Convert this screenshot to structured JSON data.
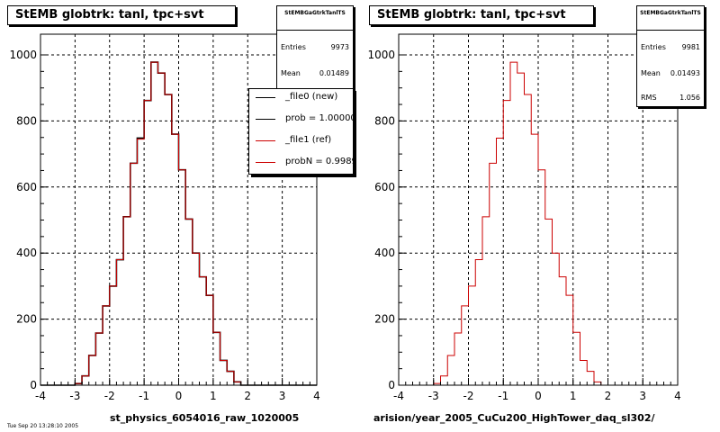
{
  "chart_data": [
    {
      "type": "bar",
      "title": "StEMB globtrk: tanl, tpc+svt",
      "xlabel": "st_physics_6054016_raw_1020005",
      "xlim": [
        -4,
        4
      ],
      "ylim": [
        0,
        1000
      ],
      "xticks": [
        "-4",
        "-3",
        "-2",
        "-1",
        "0",
        "1",
        "2",
        "3",
        "4"
      ],
      "yticks": [
        "0",
        "200",
        "400",
        "600",
        "800",
        "1000"
      ],
      "grid": true,
      "bin_edges_start": -4.0,
      "bin_width": 0.2,
      "series": [
        {
          "name": "_file0 (new)",
          "color": "#000000",
          "values": [
            0,
            0,
            0,
            0,
            0,
            5,
            28,
            90,
            158,
            240,
            300,
            380,
            510,
            672,
            748,
            862,
            978,
            945,
            880,
            760,
            652,
            503,
            400,
            328,
            272,
            160,
            75,
            42,
            10,
            0,
            0,
            0,
            0,
            0,
            0,
            0,
            0,
            0,
            0,
            0
          ]
        },
        {
          "name": "_file1 (ref)",
          "color": "#cc0000",
          "values": [
            0,
            0,
            0,
            0,
            0,
            5,
            28,
            90,
            158,
            240,
            300,
            380,
            510,
            672,
            745,
            862,
            978,
            945,
            880,
            760,
            652,
            503,
            400,
            328,
            272,
            160,
            75,
            42,
            10,
            0,
            0,
            0,
            0,
            0,
            0,
            0,
            0,
            0,
            0,
            0
          ]
        }
      ],
      "stats": {
        "name": "StEMBGaGtrkTanlTS",
        "entries": "9973",
        "mean": "0.01489"
      },
      "legend": {
        "placement": "top-right",
        "entries": [
          {
            "label": "_file0 (new)",
            "color": "#000000"
          },
          {
            "label": "prob = 1.000000",
            "color": "#000000"
          },
          {
            "label": "_file1 (ref)",
            "color": "#cc0000"
          },
          {
            "label": "probN = 0.998961",
            "color": "#cc0000"
          }
        ]
      }
    },
    {
      "type": "bar",
      "title": "StEMB globtrk: tanl, tpc+svt",
      "xlabel": "arision/year_2005_CuCu200_HighTower_daq_sl302/",
      "xlim": [
        -4,
        4
      ],
      "ylim": [
        0,
        1000
      ],
      "xticks": [
        "-4",
        "-3",
        "-2",
        "-1",
        "0",
        "1",
        "2",
        "3",
        "4"
      ],
      "yticks": [
        "0",
        "200",
        "400",
        "600",
        "800",
        "1000"
      ],
      "grid": true,
      "bin_edges_start": -4.0,
      "bin_width": 0.2,
      "series": [
        {
          "color": "#cc0000",
          "values": [
            0,
            0,
            0,
            0,
            0,
            5,
            28,
            90,
            158,
            240,
            300,
            380,
            510,
            672,
            748,
            862,
            978,
            945,
            880,
            760,
            652,
            503,
            400,
            328,
            272,
            160,
            75,
            42,
            10,
            0,
            0,
            0,
            0,
            0,
            0,
            0,
            0,
            0,
            0,
            0
          ]
        }
      ],
      "stats": {
        "name": "StEMBGaGtrkTanlTS",
        "entries": "9981",
        "mean": "0.01493",
        "rms": "1.056"
      }
    }
  ],
  "labels": {
    "entries": "Entries",
    "mean": "Mean",
    "rms": "RMS"
  },
  "footer": "Tue Sep 20 13:28:10 2005"
}
